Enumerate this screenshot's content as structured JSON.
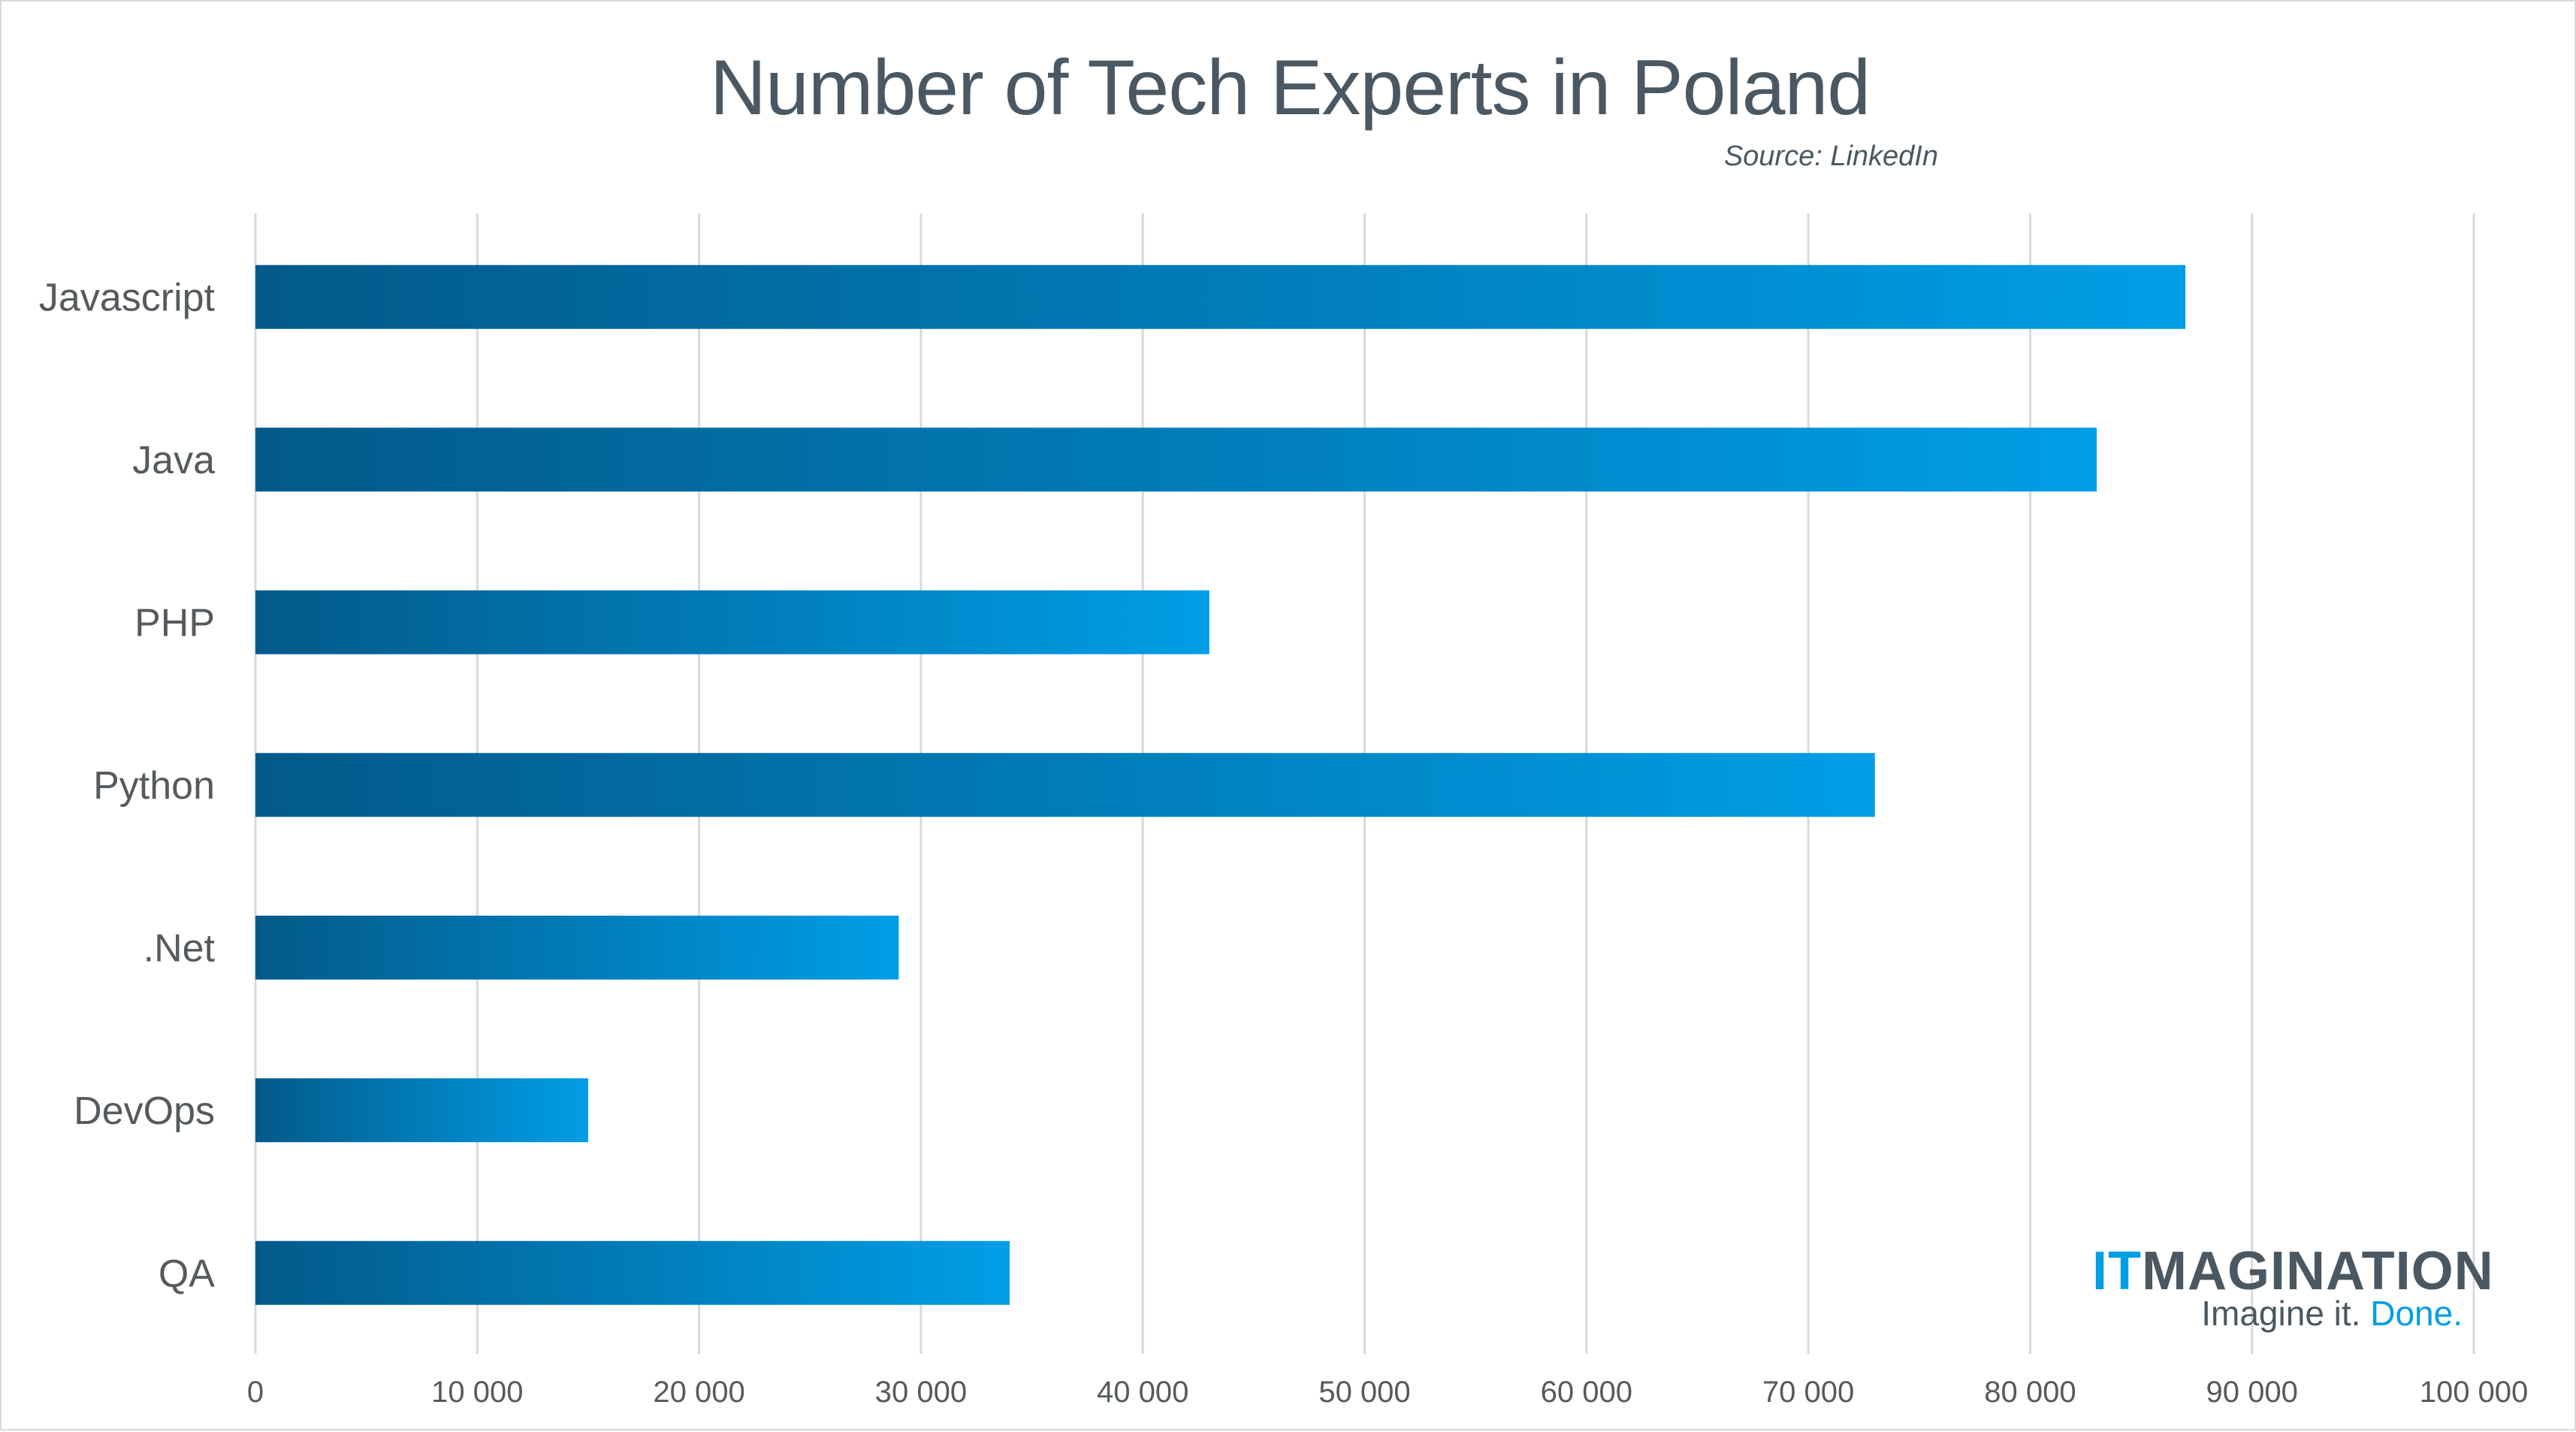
{
  "chart_data": {
    "type": "bar",
    "orientation": "horizontal",
    "title": "Number of Tech Experts in Poland",
    "subtitle": "Source: LinkedIn",
    "xlabel": "",
    "ylabel": "",
    "categories": [
      "Javascript",
      "Java",
      "PHP",
      "Python",
      ".Net",
      "DevOps",
      "QA"
    ],
    "values": [
      87000,
      83000,
      43000,
      73000,
      29000,
      15000,
      34000
    ],
    "xlim": [
      0,
      100000
    ],
    "xticks": [
      0,
      10000,
      20000,
      30000,
      40000,
      50000,
      60000,
      70000,
      80000,
      90000,
      100000
    ],
    "xtick_labels": [
      "0",
      "10 000",
      "20 000",
      "30 000",
      "40 000",
      "50 000",
      "60 000",
      "70 000",
      "80 000",
      "90 000",
      "100 000"
    ],
    "grid": "vertical",
    "legend": "none",
    "bar_gradient": {
      "start": "#025a8a",
      "end": "#009ee6"
    }
  },
  "branding": {
    "logo_prefix": "IT",
    "logo_rest": "MAGINATION",
    "tagline_main": "Imagine it. ",
    "tagline_accent": "Done.",
    "accent_color": "#009ee3",
    "text_color": "#4a5863"
  }
}
